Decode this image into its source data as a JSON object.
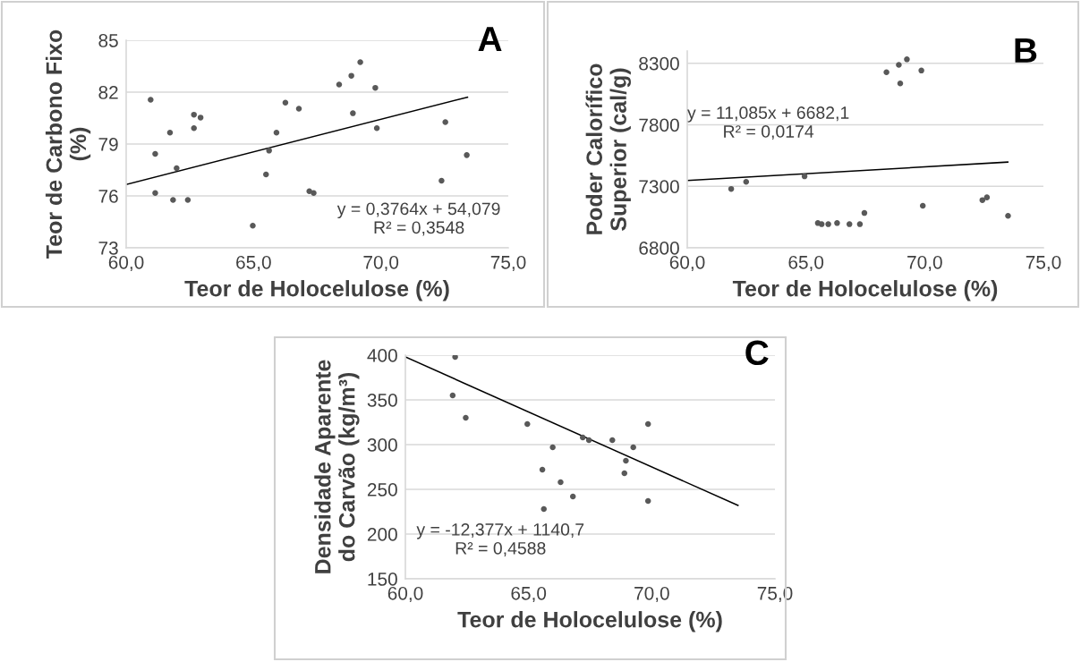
{
  "chart_data": [
    {
      "type": "scatter",
      "title": "A",
      "xlabel": "Teor de Holocelulose (%)",
      "ylabel": "Teor de Carbono Fixo\n(%)",
      "annotations": [
        "y = 0,3764x + 54,079\nR² = 0,3548"
      ],
      "xlim": [
        60,
        75
      ],
      "xticks": [
        {
          "value": 60,
          "label": "60,0"
        },
        {
          "value": 65,
          "label": "65,0"
        },
        {
          "value": 70,
          "label": "70,0"
        },
        {
          "value": 75,
          "label": "75,0"
        }
      ],
      "ylim": [
        73,
        85
      ],
      "yticks": [
        73,
        76,
        79,
        82,
        85
      ],
      "grid": "y",
      "legend": false,
      "marker": "circle",
      "series": [
        {
          "color": "#595959",
          "x": [
            60.96,
            61.14,
            61.14,
            61.72,
            61.98,
            61.84,
            62.42,
            62.66,
            62.92,
            62.66,
            64.97,
            65.49,
            65.61,
            65.9,
            66.25,
            66.78,
            67.19,
            67.36,
            68.36,
            68.84,
            69.19,
            68.9,
            69.78,
            69.84,
            72.38,
            72.53,
            73.37
          ],
          "values": [
            81.56,
            78.43,
            76.17,
            79.66,
            77.6,
            75.77,
            75.77,
            80.7,
            80.53,
            79.92,
            74.28,
            77.24,
            78.62,
            79.66,
            81.39,
            81.04,
            76.27,
            76.17,
            82.44,
            82.95,
            83.73,
            80.78,
            82.25,
            79.92,
            76.88,
            80.27,
            78.36
          ]
        },
        {
          "type": "line",
          "color": "#000000",
          "x": [
            60,
            73.4
          ],
          "values": [
            76.66,
            81.71
          ],
          "marker": "none"
        }
      ]
    },
    {
      "type": "scatter",
      "title": "B",
      "xlabel": "Teor de Holocelulose (%)",
      "ylabel": "Poder Calorífico\nSuperior (cal/g)",
      "annotations": [
        "y = 11,085x + 6682,1\nR² = 0,0174"
      ],
      "xlim": [
        60,
        75
      ],
      "xticks": [
        {
          "value": 60,
          "label": "60,0"
        },
        {
          "value": 65,
          "label": "65,0"
        },
        {
          "value": 70,
          "label": "70,0"
        },
        {
          "value": 75,
          "label": "75,0"
        }
      ],
      "ylim": [
        6800,
        8400
      ],
      "yticks": [
        6800,
        7300,
        7800,
        8300
      ],
      "grid": "y",
      "legend": false,
      "marker": "circle",
      "series": [
        {
          "color": "#595959",
          "x": [
            61.85,
            62.48,
            64.94,
            65.5,
            65.66,
            65.94,
            66.31,
            66.83,
            67.27,
            67.46,
            68.39,
            68.91,
            69.25,
            68.97,
            69.86,
            69.92,
            72.43,
            72.62,
            73.51
          ],
          "values": [
            7279,
            7336,
            7381,
            7001,
            6992,
            6992,
            7001,
            6992,
            6992,
            7083,
            8227,
            8287,
            8332,
            8136,
            8241,
            7142,
            7188,
            7210,
            7060
          ]
        },
        {
          "type": "line",
          "color": "#000000",
          "x": [
            60,
            73.5
          ],
          "values": [
            7347,
            7497
          ],
          "marker": "none"
        }
      ]
    },
    {
      "type": "scatter",
      "title": "C",
      "xlabel": "Teor de Holocelulose (%)",
      "ylabel": "Densidade Aparente\ndo Carvão (kg/m³)",
      "annotations": [
        "y = -12,377x + 1140,7\nR² = 0,4588"
      ],
      "xlim": [
        60,
        75
      ],
      "xticks": [
        {
          "value": 60,
          "label": "60,0"
        },
        {
          "value": 65,
          "label": "65,0"
        },
        {
          "value": 70,
          "label": "70,0"
        },
        {
          "value": 75,
          "label": "75,0"
        }
      ],
      "ylim": [
        150,
        400
      ],
      "yticks": [
        150,
        200,
        250,
        300,
        350,
        400
      ],
      "grid": "y",
      "legend": false,
      "marker": "circle",
      "series": [
        {
          "color": "#595959",
          "x": [
            62.02,
            61.92,
            62.45,
            64.95,
            65.98,
            65.56,
            66.3,
            66.8,
            65.62,
            67.2,
            67.45,
            68.4,
            69.25,
            68.95,
            68.89,
            69.85,
            69.85
          ],
          "values": [
            398,
            355,
            330,
            323,
            297,
            272,
            258,
            242,
            228,
            308,
            305,
            305,
            297,
            282,
            268,
            323,
            237
          ]
        },
        {
          "type": "line",
          "color": "#000000",
          "x": [
            60,
            73.5
          ],
          "values": [
            398,
            232
          ],
          "marker": "none"
        }
      ]
    }
  ]
}
